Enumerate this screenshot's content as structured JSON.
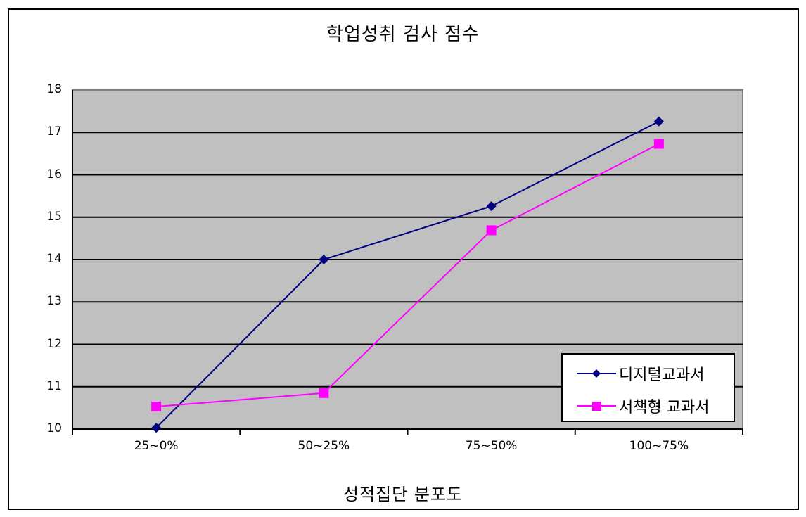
{
  "chart_data": {
    "type": "line",
    "title": "학업성취 검사 점수",
    "xlabel": "성적집단 분포도",
    "ylabel": "",
    "categories": [
      "25~0%",
      "50~25%",
      "75~50%",
      "100~75%"
    ],
    "series": [
      {
        "name": "디지털교과서",
        "values": [
          10.03,
          14.0,
          15.26,
          17.26
        ],
        "color": "#000080",
        "marker": "diamond"
      },
      {
        "name": "서책형 교과서",
        "values": [
          10.53,
          10.85,
          14.69,
          16.73
        ],
        "color": "#FF00FF",
        "marker": "square"
      }
    ],
    "ylim": [
      10,
      18
    ],
    "yticks": [
      "10",
      "11",
      "12",
      "13",
      "14",
      "15",
      "16",
      "17",
      "18"
    ],
    "grid": true,
    "legend_position": "lower-right-inside",
    "plot_background": "#C0C0C0"
  },
  "legend": {
    "items": [
      {
        "label": "디지털교과서"
      },
      {
        "label": "서책형 교과서"
      }
    ]
  }
}
